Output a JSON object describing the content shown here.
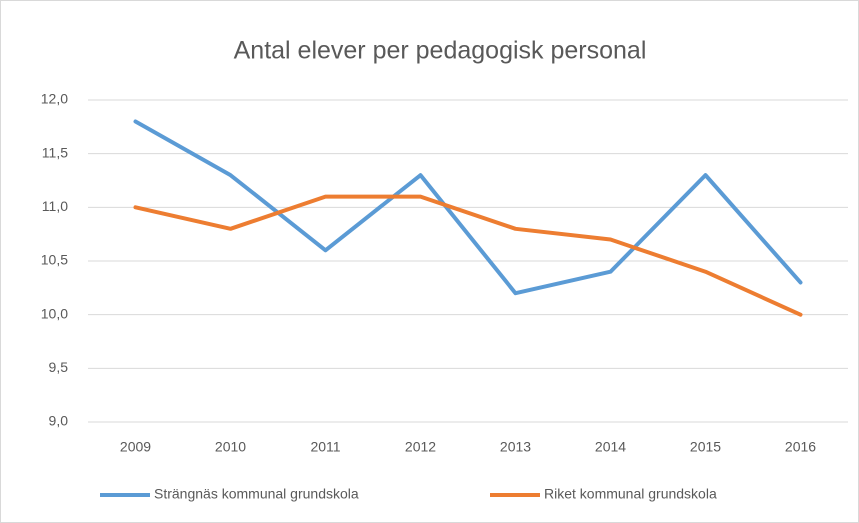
{
  "chart_data": {
    "type": "line",
    "title": "Antal elever per pedagogisk personal",
    "categories": [
      "2009",
      "2010",
      "2011",
      "2012",
      "2013",
      "2014",
      "2015",
      "2016"
    ],
    "series": [
      {
        "name": "Strängnäs kommunal grundskola",
        "color": "#5b9bd5",
        "values": [
          11.8,
          11.3,
          10.6,
          11.3,
          10.2,
          10.4,
          11.3,
          10.3
        ]
      },
      {
        "name": "Riket kommunal grundskola",
        "color": "#ed7d31",
        "values": [
          11.0,
          10.8,
          11.1,
          11.1,
          10.8,
          10.7,
          10.4,
          10.0
        ]
      }
    ],
    "ylim": [
      9,
      12
    ],
    "yticks": [
      {
        "value": 9,
        "label": "9,0"
      },
      {
        "value": 9.5,
        "label": "9,5"
      },
      {
        "value": 10,
        "label": "10,0"
      },
      {
        "value": 10.5,
        "label": "10,5"
      },
      {
        "value": 11,
        "label": "11,0"
      },
      {
        "value": 11.5,
        "label": "11,5"
      },
      {
        "value": 12,
        "label": "12,0"
      }
    ],
    "grid": true,
    "legend": "bottom"
  }
}
